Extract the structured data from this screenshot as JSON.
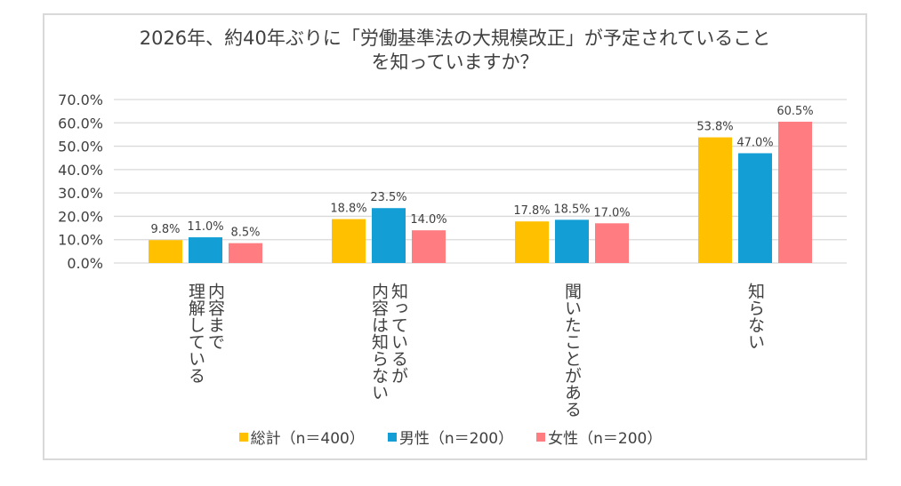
{
  "chart_data": {
    "type": "bar",
    "title_lines": [
      "2026年、約40年ぶりに「労働基準法の大規模改正」が予定されていること",
      "を知っていますか？"
    ],
    "xlabel": "",
    "ylabel": "",
    "ylim": [
      0,
      70
    ],
    "yticks": [
      0,
      10,
      20,
      30,
      40,
      50,
      60,
      70
    ],
    "ytick_labels": [
      "0.0%",
      "10.0%",
      "20.0%",
      "30.0%",
      "40.0%",
      "50.0%",
      "60.0%",
      "70.0%"
    ],
    "grid": true,
    "legend_position": "bottom",
    "categories": [
      {
        "label": "内容まで理解している",
        "lines": [
          "内容まで",
          "理解している"
        ]
      },
      {
        "label": "知っているが内容は知らない",
        "lines": [
          "知っているが",
          "内容は知らない"
        ]
      },
      {
        "label": "聞いたことがある",
        "lines": [
          "聞いたことがある"
        ]
      },
      {
        "label": "知らない",
        "lines": [
          "知らない"
        ]
      }
    ],
    "series": [
      {
        "name": "総計（n＝400）",
        "color": "#FFC000",
        "values": [
          9.8,
          18.8,
          17.8,
          53.8
        ],
        "labels": [
          "9.8%",
          "18.8%",
          "17.8%",
          "53.8%"
        ]
      },
      {
        "name": "男性（n＝200）",
        "color": "#139FD6",
        "values": [
          11.0,
          23.5,
          18.5,
          47.0
        ],
        "labels": [
          "11.0%",
          "23.5%",
          "18.5%",
          "47.0%"
        ]
      },
      {
        "name": "女性（n＝200）",
        "color": "#FF7C80",
        "values": [
          8.5,
          14.0,
          17.0,
          60.5
        ],
        "labels": [
          "8.5%",
          "14.0%",
          "17.0%",
          "60.5%"
        ]
      }
    ]
  }
}
